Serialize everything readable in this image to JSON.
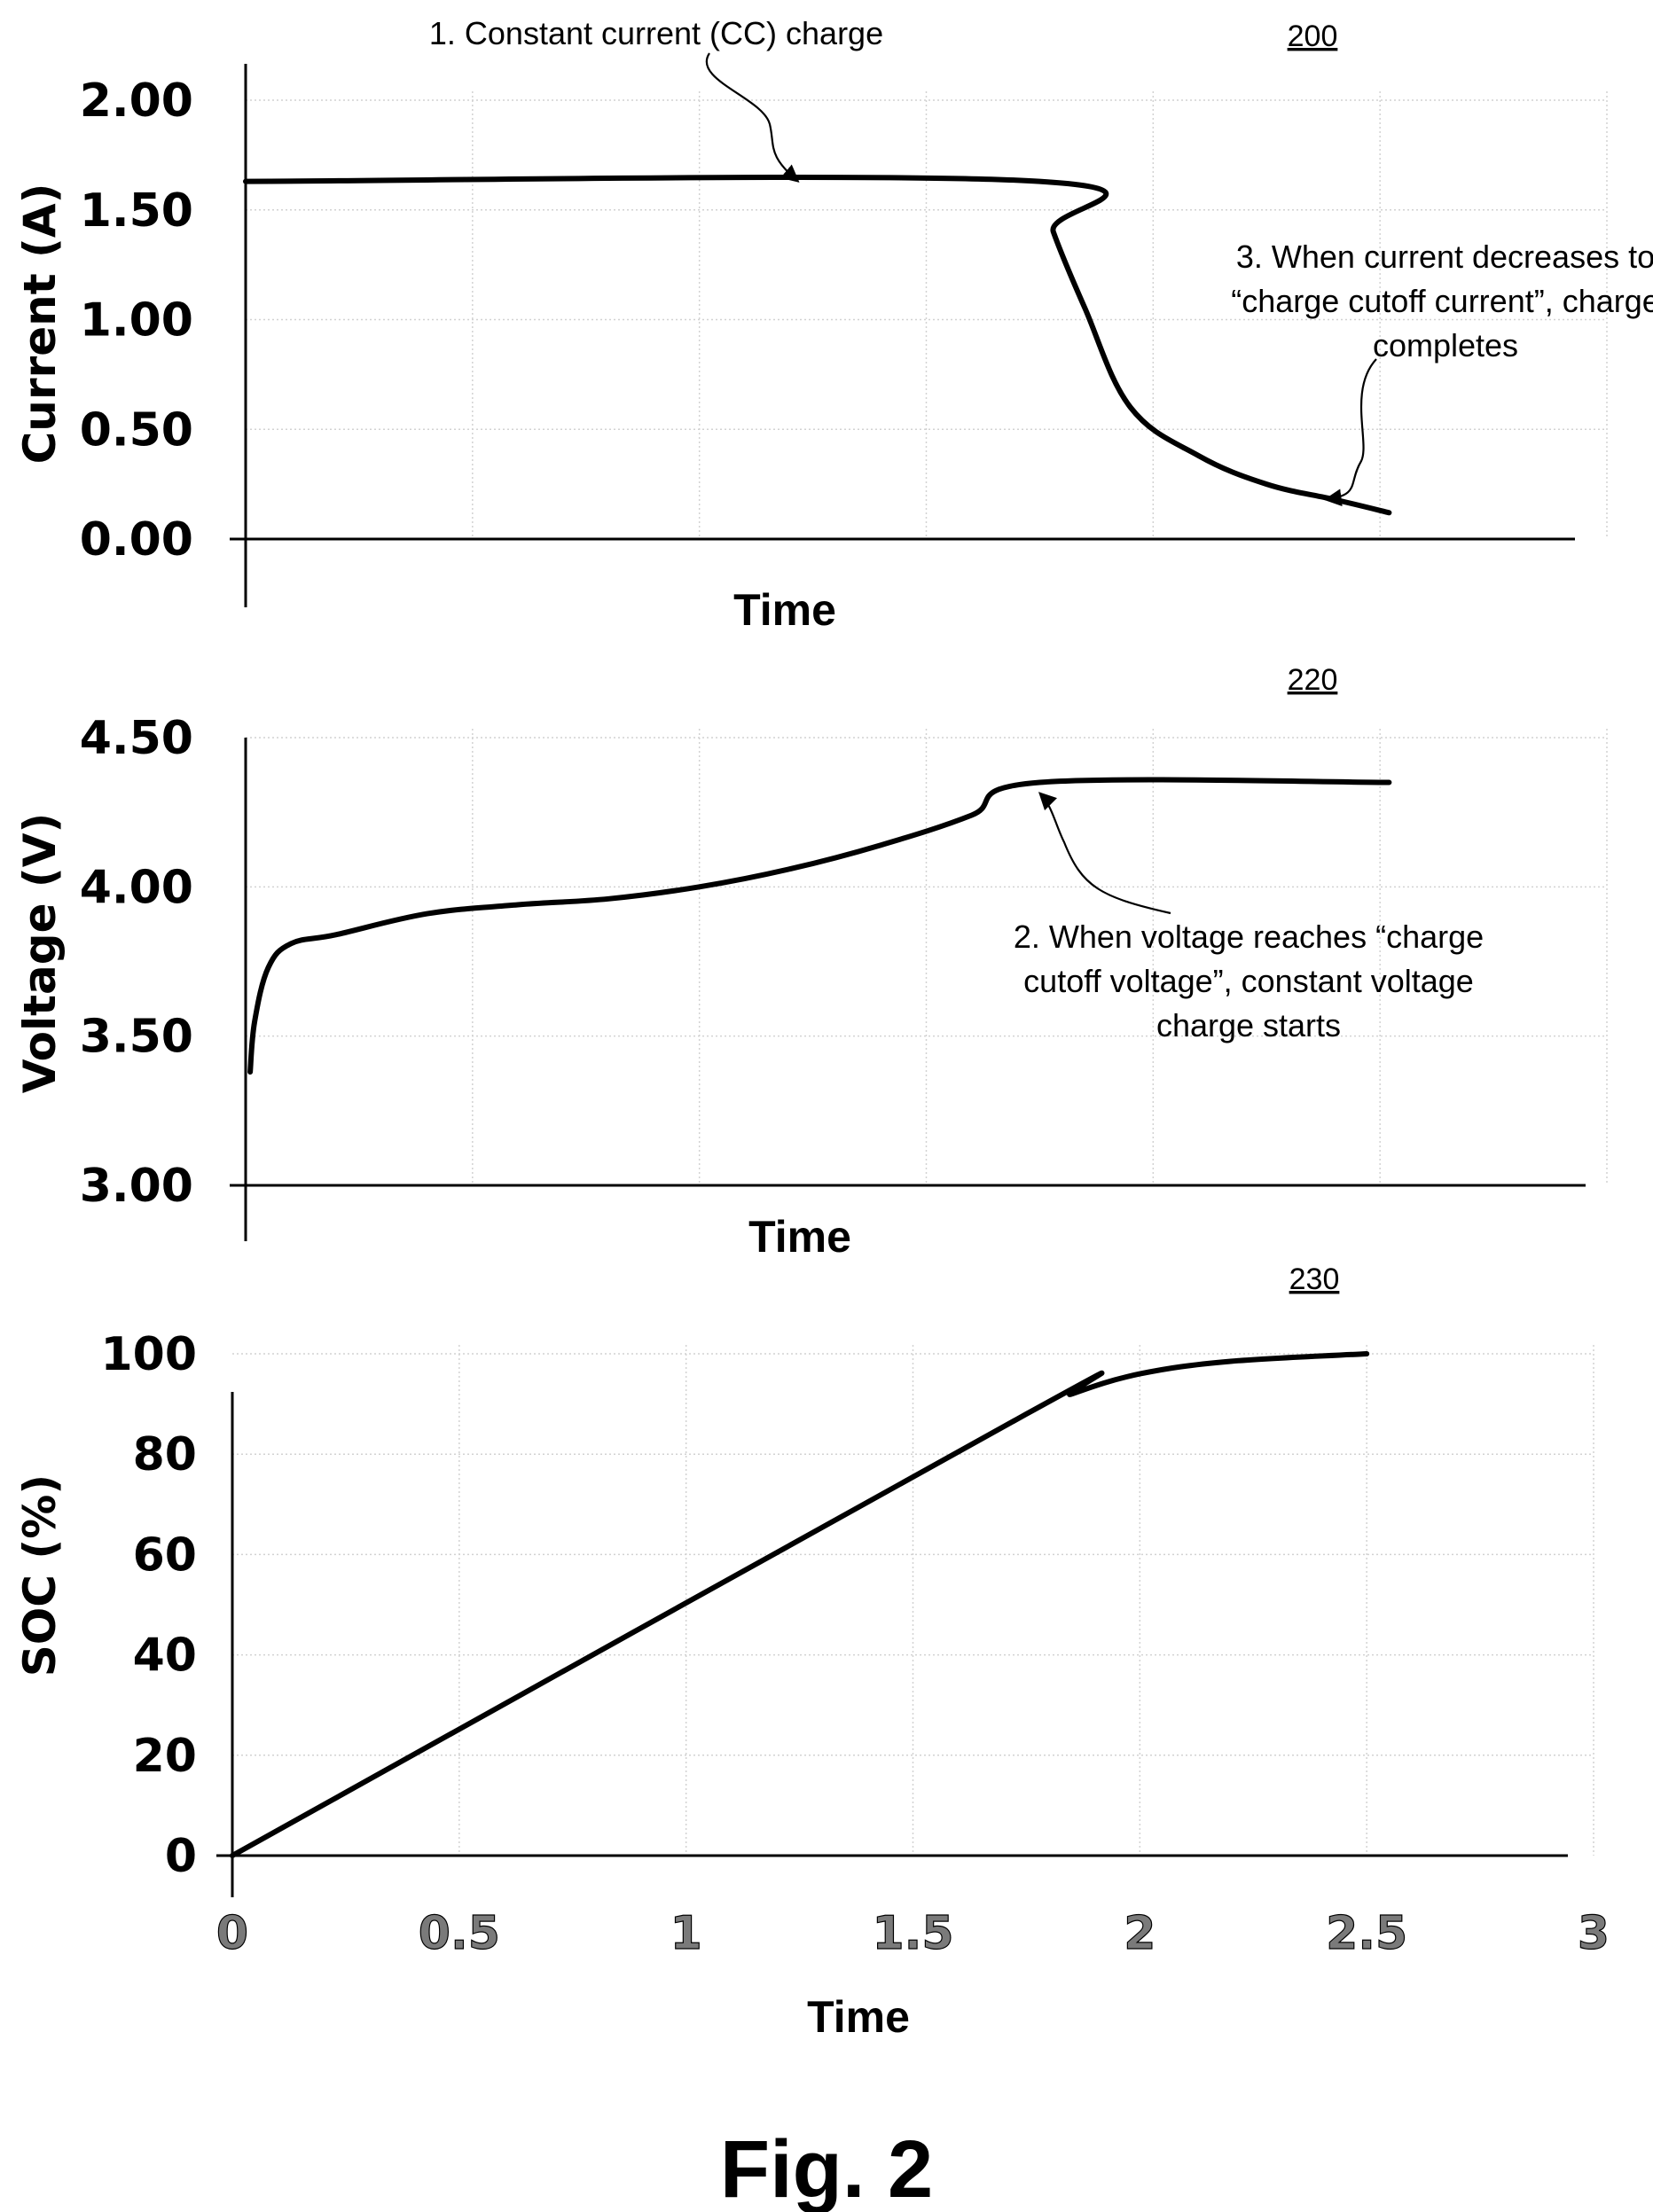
{
  "figure_label": "Fig. 2",
  "chart_data": [
    {
      "id": "200",
      "type": "line",
      "ref_label": "200",
      "xlabel": "Time",
      "ylabel": "Current (A)",
      "xlim": [
        0,
        3
      ],
      "ylim": [
        0,
        2
      ],
      "yticks": [
        "0.00",
        "0.50",
        "1.00",
        "1.50",
        "2.00"
      ],
      "ytick_values": [
        0,
        0.5,
        1.0,
        1.5,
        2.0
      ],
      "grid": true,
      "series": [
        {
          "x": [
            0,
            1.75,
            1.78,
            1.85,
            1.95,
            2.1,
            2.25,
            2.4,
            2.52
          ],
          "y": [
            1.63,
            1.63,
            1.4,
            1.05,
            0.6,
            0.38,
            0.25,
            0.18,
            0.12
          ]
        }
      ],
      "annotations": [
        {
          "text": [
            "1. Constant current (CC) charge"
          ],
          "target_x": 1.2,
          "target_y": 1.63
        },
        {
          "text": [
            "3. When current decreases to",
            "“charge cutoff current”, charge",
            "completes"
          ],
          "target_x": 2.38,
          "target_y": 0.18
        }
      ]
    },
    {
      "id": "220",
      "type": "line",
      "ref_label": "220",
      "xlabel": "Time",
      "ylabel": "Voltage (V)",
      "xlim": [
        0,
        3
      ],
      "ylim": [
        3,
        4.5
      ],
      "yticks": [
        "3.00",
        "3.50",
        "4.00",
        "4.50"
      ],
      "ytick_values": [
        3.0,
        3.5,
        4.0,
        4.5
      ],
      "grid": true,
      "series": [
        {
          "x": [
            0.01,
            0.02,
            0.05,
            0.1,
            0.2,
            0.4,
            0.6,
            0.8,
            1.0,
            1.2,
            1.4,
            1.6,
            1.75,
            2.52
          ],
          "y": [
            3.38,
            3.55,
            3.73,
            3.81,
            3.84,
            3.91,
            3.94,
            3.96,
            4.0,
            4.06,
            4.14,
            4.24,
            4.35,
            4.35
          ]
        }
      ],
      "annotations": [
        {
          "text": [
            "2. When voltage reaches “charge",
            "cutoff voltage”, constant voltage",
            "charge starts"
          ],
          "target_x": 1.75,
          "target_y": 4.35
        }
      ]
    },
    {
      "id": "230",
      "type": "line",
      "ref_label": "230",
      "xlabel": "Time",
      "ylabel": "SOC (%)",
      "xlim": [
        0,
        3
      ],
      "ylim": [
        0,
        100
      ],
      "yticks": [
        "0",
        "20",
        "40",
        "60",
        "80",
        "100"
      ],
      "ytick_values": [
        0,
        20,
        40,
        60,
        80,
        100
      ],
      "xticks": [
        "0",
        "0.5",
        "1",
        "1.5",
        "2",
        "2.5",
        "3"
      ],
      "xtick_values": [
        0,
        0.5,
        1,
        1.5,
        2,
        2.5,
        3
      ],
      "grid": true,
      "series": [
        {
          "x": [
            0,
            1.75,
            1.85,
            2.0,
            2.2,
            2.5
          ],
          "y": [
            0,
            88,
            92,
            96,
            98.5,
            100
          ]
        }
      ]
    }
  ]
}
